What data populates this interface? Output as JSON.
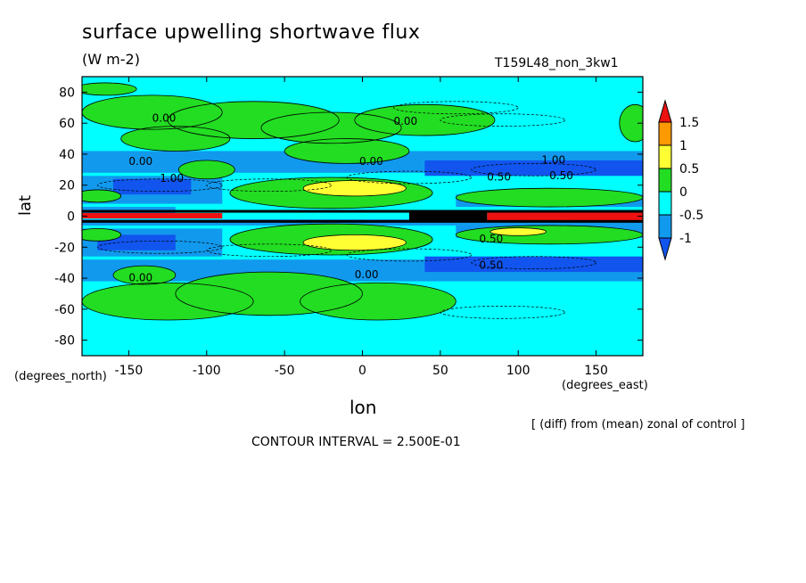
{
  "chart_data": {
    "type": "heatmap",
    "title": "surface upwelling shortwave flux",
    "units": "(W m-2)",
    "run_id": "T159L48_non_3kw1",
    "xlabel": "lon",
    "ylabel": "lat",
    "x_units": "(degrees_east)",
    "y_units": "(degrees_north)",
    "xlim": [
      -180,
      180
    ],
    "ylim": [
      -90,
      90
    ],
    "x_ticks": [
      -150,
      -100,
      -50,
      0,
      50,
      100,
      150
    ],
    "y_ticks": [
      80,
      60,
      40,
      20,
      0,
      -20,
      -40,
      -60,
      -80
    ],
    "x_tick_labels": [
      "-150",
      "-100",
      "-50",
      "0",
      "50",
      "100",
      "150"
    ],
    "y_tick_labels": [
      "80",
      "60",
      "40",
      "20",
      "0",
      "-20",
      "-40",
      "-60",
      "-80"
    ],
    "colorbar": {
      "labels": [
        "1.5",
        "1",
        "0.5",
        "0",
        "-0.5",
        "-1"
      ],
      "levels": [
        -1,
        -0.5,
        0,
        0.5,
        1,
        1.5
      ],
      "colors": {
        "above_1.5": "#ee1111",
        "1_to_1.5": "#ff9900",
        "0.5_to_1": "#ffff33",
        "0_to_0.5": "#22dd22",
        "-0.5_to_0": "#00ffff",
        "-1_to_-0.5": "#1199ee",
        "below_-1": "#1155ee"
      }
    },
    "contour_labels": [
      "0.00",
      "0.00",
      "0.00",
      "0.00",
      "1.00",
      "1.00",
      "0.50",
      "0.50",
      "0.50",
      "0.00",
      "0.00",
      "0.50"
    ],
    "footnote": "[ (diff) from (mean) zonal of control ]",
    "contour_interval": "CONTOUR INTERVAL = 2.500E-01"
  }
}
